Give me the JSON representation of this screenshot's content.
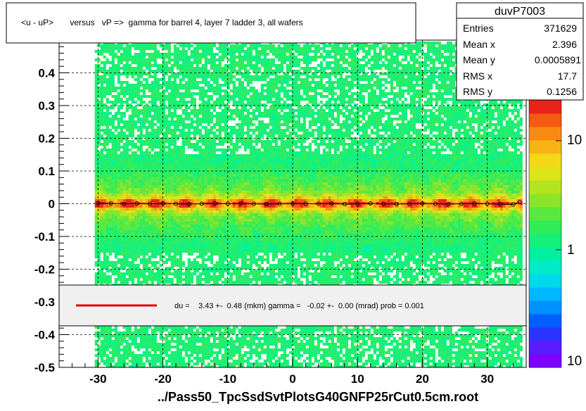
{
  "chart_data": {
    "type": "heatmap",
    "title": "<u - uP>       versus   vP =>  gamma for barrel 4, layer 7 ladder 3, all wafers",
    "xlabel": "../Pass50_TpcSsdSvtPlotsG40GNFP25rCut0.5cm.root",
    "ylabel": "",
    "xlim": [
      -36,
      36
    ],
    "ylim": [
      -0.5,
      0.5
    ],
    "x_ticks": [
      -30,
      -20,
      -10,
      0,
      10,
      20,
      30
    ],
    "y_ticks": [
      -0.5,
      -0.4,
      -0.3,
      -0.2,
      -0.1,
      0,
      0.1,
      0.2,
      0.3,
      0.4
    ],
    "x_tick_labels": [
      "-30",
      "-20",
      "-10",
      "0",
      "10",
      "20",
      "30"
    ],
    "y_tick_labels": [
      "-0.5",
      "-0.4",
      "-0.3",
      "-0.2",
      "-0.1",
      "0",
      "0.1",
      "0.2",
      "0.3",
      "0.4"
    ],
    "data_x_range": [
      -30.5,
      35
    ],
    "band_center_y": 0.0,
    "profile_points": {
      "x": [
        -30,
        -28,
        -26,
        -24,
        -22,
        -20,
        -18,
        -16,
        -14,
        -12,
        -10,
        -8,
        -6,
        -4,
        -2,
        0,
        2,
        4,
        6,
        8,
        10,
        12,
        14,
        16,
        18,
        20,
        22,
        24,
        26,
        28,
        30,
        32,
        34,
        35
      ],
      "y": [
        0.002,
        0.001,
        0.0,
        0.001,
        0.0,
        0.001,
        0.0,
        -0.001,
        0.0,
        0.001,
        0.0,
        0.001,
        0.0,
        -0.001,
        0.0,
        0.001,
        0.0,
        0.0,
        0.001,
        -0.001,
        0.0,
        0.001,
        0.0,
        -0.001,
        0.0,
        0.001,
        0.0,
        -0.001,
        0.0,
        0.001,
        0.0,
        -0.001,
        -0.002,
        0.005
      ]
    },
    "grid": true,
    "log_z": true,
    "colorbar_labels": [
      "10",
      "1",
      "10"
    ],
    "stats_box": {
      "name": "duvP7003",
      "rows": [
        {
          "label": "Entries",
          "value": "371629"
        },
        {
          "label": "Mean x",
          "value": "2.396"
        },
        {
          "label": "Mean y",
          "value": "0.0005891"
        },
        {
          "label": "RMS x",
          "value": "17.7"
        },
        {
          "label": "RMS y",
          "value": "0.1256"
        }
      ]
    },
    "fit_legend": "du =    3.43 +-  0.48 (mkm) gamma =   -0.02 +-  0.00 (mrad) prob = 0.001",
    "colors": {
      "fit_line": "#e00000",
      "background_band": "#2ee87a",
      "ridge_core": "#e8231c"
    }
  }
}
